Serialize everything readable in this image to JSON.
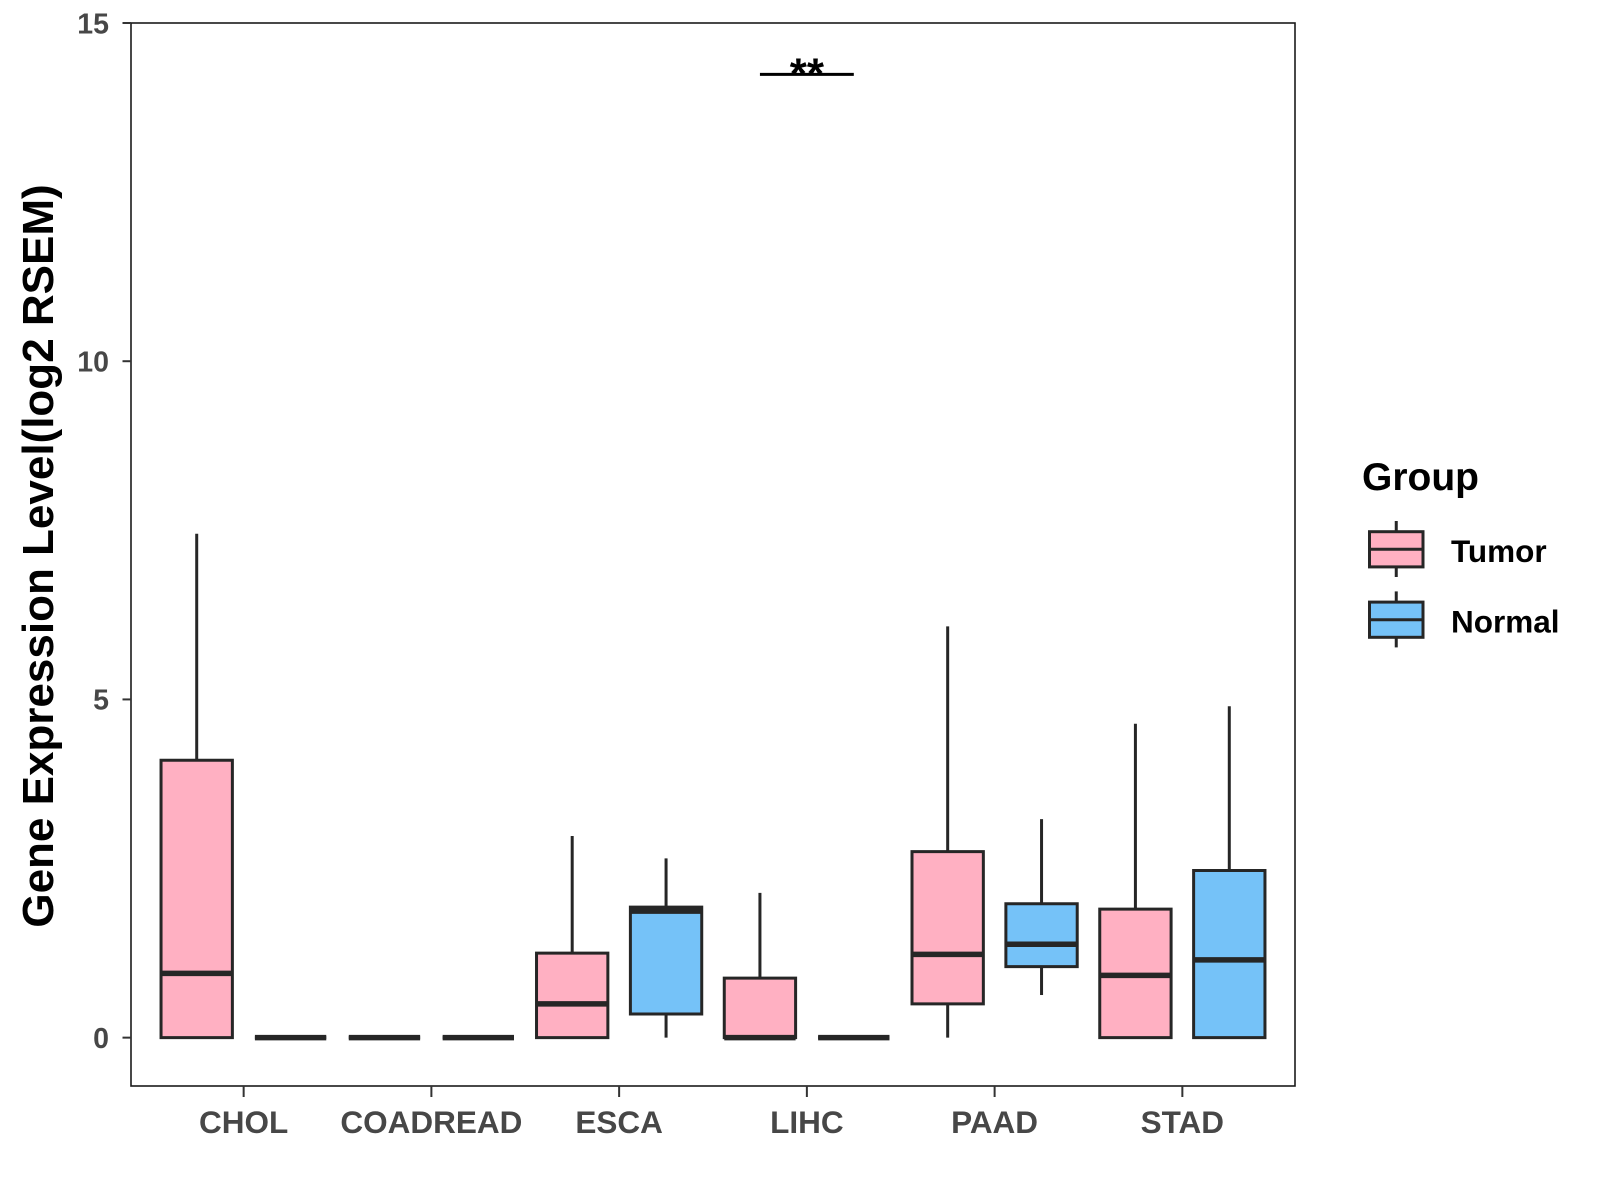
{
  "chart_data": {
    "type": "boxplot",
    "title": "",
    "xlabel": "",
    "ylabel": "Gene Expression Level(log2 RSEM)",
    "ylim": [
      -0.715,
      15.0
    ],
    "yticks": [
      0,
      5,
      10,
      15
    ],
    "grid": false,
    "categories": [
      "CHOL",
      "COADREAD",
      "ESCA",
      "LIHC",
      "PAAD",
      "STAD"
    ],
    "legend": {
      "title": "Group",
      "position": "right"
    },
    "outline_color": "#262626",
    "series": [
      {
        "name": "Tumor",
        "color": "#FFB0C2",
        "boxes": [
          {
            "lower": 0,
            "q1": 0,
            "median": 0.95,
            "q3": 4.1,
            "upper": 7.45
          },
          {
            "lower": 0,
            "q1": 0,
            "median": 0,
            "q3": 0,
            "upper": 0
          },
          {
            "lower": 0,
            "q1": 0,
            "median": 0.5,
            "q3": 1.25,
            "upper": 2.98
          },
          {
            "lower": 0,
            "q1": 0,
            "median": 0,
            "q3": 0.88,
            "upper": 2.14
          },
          {
            "lower": 0,
            "q1": 0.5,
            "median": 1.23,
            "q3": 2.75,
            "upper": 6.08
          },
          {
            "lower": 0,
            "q1": 0,
            "median": 0.92,
            "q3": 1.9,
            "upper": 4.64
          }
        ]
      },
      {
        "name": "Normal",
        "color": "#75C2F8",
        "boxes": [
          {
            "lower": 0,
            "q1": 0,
            "median": 0,
            "q3": 0,
            "upper": 0
          },
          {
            "lower": 0,
            "q1": 0,
            "median": 0,
            "q3": 0,
            "upper": 0
          },
          {
            "lower": 0,
            "q1": 0.35,
            "median": 1.87,
            "q3": 1.93,
            "upper": 2.65
          },
          {
            "lower": 0,
            "q1": 0,
            "median": 0,
            "q3": 0,
            "upper": 0
          },
          {
            "lower": 0.63,
            "q1": 1.05,
            "median": 1.38,
            "q3": 1.98,
            "upper": 3.23
          },
          {
            "lower": 0,
            "q1": 0,
            "median": 1.15,
            "q3": 2.47,
            "upper": 4.9
          }
        ]
      }
    ],
    "annotations": [
      {
        "category": "LIHC",
        "from": "Tumor",
        "to": "Normal",
        "y": 14.24,
        "label": "**"
      }
    ]
  }
}
